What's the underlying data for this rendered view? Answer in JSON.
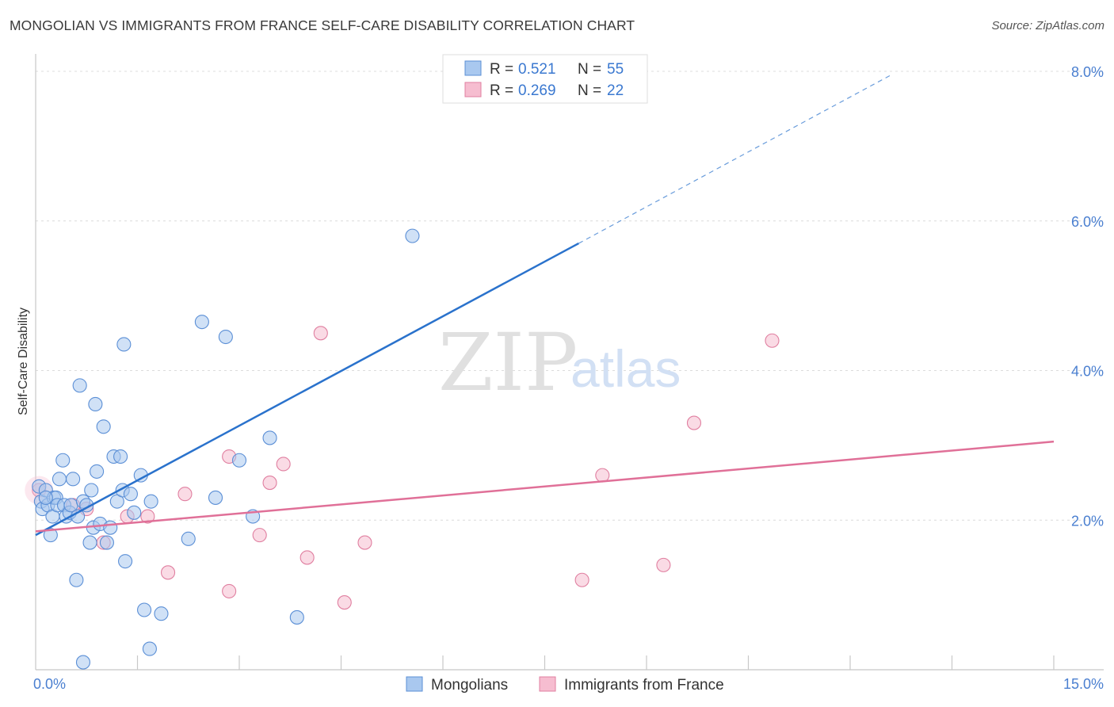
{
  "header": {
    "title": "MONGOLIAN VS IMMIGRANTS FROM FRANCE SELF-CARE DISABILITY CORRELATION CHART",
    "source": "Source: ZipAtlas.com"
  },
  "watermark": {
    "zip": "ZIP",
    "atlas": "atlas"
  },
  "colors": {
    "blue_fill": "#a9c8ef",
    "blue_stroke": "#5b8fd6",
    "blue_line": "#2a72cc",
    "pink_fill": "#f6bdd0",
    "pink_stroke": "#e07fa0",
    "pink_line": "#e07098",
    "tick": "#4a7fd0"
  },
  "chart_data": {
    "type": "scatter",
    "title": "MONGOLIAN VS IMMIGRANTS FROM FRANCE SELF-CARE DISABILITY CORRELATION CHART",
    "xlabel": "",
    "ylabel": "Self-Care Disability",
    "xlim": [
      0,
      15
    ],
    "ylim": [
      0,
      8
    ],
    "x_tick_labels": {
      "left": "0.0%",
      "right": "15.0%"
    },
    "y_ticks": [
      {
        "value": 2,
        "label": "2.0%"
      },
      {
        "value": 4,
        "label": "4.0%"
      },
      {
        "value": 6,
        "label": "6.0%"
      },
      {
        "value": 8,
        "label": "8.0%"
      }
    ],
    "legend_stats": [
      {
        "r_label": "R =",
        "r_value": "0.521",
        "n_label": "N =",
        "n_value": "55"
      },
      {
        "r_label": "R =",
        "r_value": "0.269",
        "n_label": "N =",
        "n_value": "22"
      }
    ],
    "series": [
      {
        "name": "Mongolians",
        "color": "#a9c8ef",
        "trend": {
          "x0": 0.0,
          "y0": 1.8,
          "x1": 8.0,
          "y1": 5.7,
          "dash_to_x": 12.6,
          "dash_to_y": 7.95
        },
        "points": [
          [
            0.05,
            2.45
          ],
          [
            0.08,
            2.25
          ],
          [
            0.1,
            2.15
          ],
          [
            0.15,
            2.4
          ],
          [
            0.18,
            2.2
          ],
          [
            0.22,
            1.8
          ],
          [
            0.25,
            2.05
          ],
          [
            0.27,
            2.3
          ],
          [
            0.3,
            2.3
          ],
          [
            0.32,
            2.2
          ],
          [
            0.35,
            2.55
          ],
          [
            0.4,
            2.8
          ],
          [
            0.42,
            2.2
          ],
          [
            0.45,
            2.05
          ],
          [
            0.5,
            2.1
          ],
          [
            0.52,
            2.2
          ],
          [
            0.55,
            2.55
          ],
          [
            0.6,
            1.2
          ],
          [
            0.65,
            3.8
          ],
          [
            0.7,
            2.25
          ],
          [
            0.75,
            2.2
          ],
          [
            0.8,
            1.7
          ],
          [
            0.82,
            2.4
          ],
          [
            0.85,
            1.9
          ],
          [
            0.88,
            3.55
          ],
          [
            0.9,
            2.65
          ],
          [
            0.95,
            1.95
          ],
          [
            1.0,
            3.25
          ],
          [
            1.05,
            1.7
          ],
          [
            1.1,
            1.9
          ],
          [
            1.15,
            2.85
          ],
          [
            1.2,
            2.25
          ],
          [
            1.25,
            2.85
          ],
          [
            1.28,
            2.4
          ],
          [
            1.3,
            4.35
          ],
          [
            1.32,
            1.45
          ],
          [
            1.4,
            2.35
          ],
          [
            1.45,
            2.1
          ],
          [
            1.55,
            2.6
          ],
          [
            1.6,
            0.8
          ],
          [
            1.68,
            0.28
          ],
          [
            1.7,
            2.25
          ],
          [
            1.85,
            0.75
          ],
          [
            2.25,
            1.75
          ],
          [
            2.45,
            4.65
          ],
          [
            2.65,
            2.3
          ],
          [
            2.8,
            4.45
          ],
          [
            3.0,
            2.8
          ],
          [
            3.2,
            2.05
          ],
          [
            3.45,
            3.1
          ],
          [
            3.85,
            0.7
          ],
          [
            5.55,
            5.8
          ],
          [
            0.62,
            2.05
          ],
          [
            0.15,
            2.3
          ],
          [
            0.7,
            0.1
          ]
        ]
      },
      {
        "name": "Immigrants from France",
        "color": "#f6bdd0",
        "trend": {
          "x0": 0.0,
          "y0": 1.85,
          "x1": 15.0,
          "y1": 3.05
        },
        "points": [
          [
            0.05,
            2.4
          ],
          [
            0.55,
            2.2
          ],
          [
            0.75,
            2.15
          ],
          [
            1.0,
            1.7
          ],
          [
            1.35,
            2.05
          ],
          [
            1.65,
            2.05
          ],
          [
            1.95,
            1.3
          ],
          [
            2.2,
            2.35
          ],
          [
            2.85,
            1.05
          ],
          [
            2.85,
            2.85
          ],
          [
            3.3,
            1.8
          ],
          [
            3.45,
            2.5
          ],
          [
            3.65,
            2.75
          ],
          [
            4.0,
            1.5
          ],
          [
            4.2,
            4.5
          ],
          [
            4.55,
            0.9
          ],
          [
            4.85,
            1.7
          ],
          [
            8.05,
            1.2
          ],
          [
            8.35,
            2.6
          ],
          [
            9.25,
            1.4
          ],
          [
            9.7,
            3.3
          ],
          [
            10.85,
            4.4
          ]
        ]
      }
    ]
  }
}
